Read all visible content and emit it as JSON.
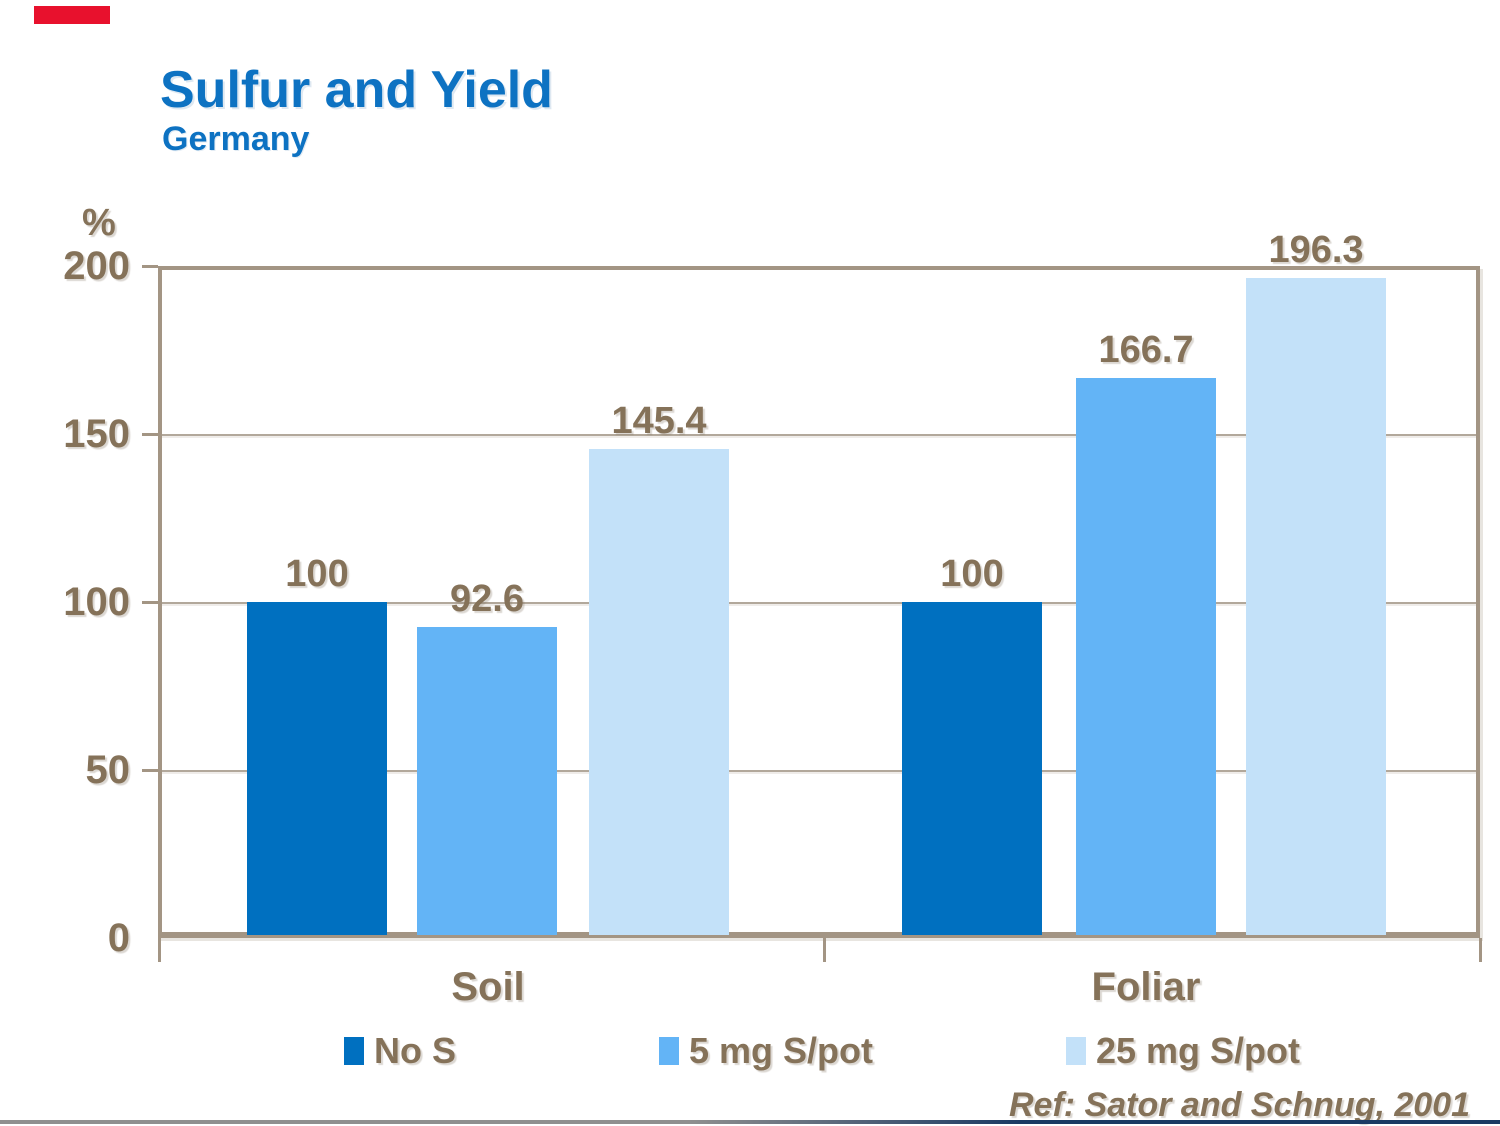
{
  "header": {
    "title": "Sulfur and Yield",
    "subtitle": "Germany"
  },
  "chart_data": {
    "type": "bar",
    "title": "Sulfur and Yield",
    "subtitle": "Germany",
    "unit_label": "%",
    "categories": [
      "Soil",
      "Foliar"
    ],
    "series": [
      {
        "name": "No  S",
        "color": "#0070c0",
        "values": [
          100,
          100
        ],
        "labels": [
          "100",
          "100"
        ]
      },
      {
        "name": "5 mg S/pot",
        "color": "#63b4f6",
        "values": [
          92.6,
          166.7
        ],
        "labels": [
          "92.6",
          "166.7"
        ]
      },
      {
        "name": "25 mg S/pot",
        "color": "#c3e1f9",
        "values": [
          145.4,
          196.3
        ],
        "labels": [
          "145.4",
          "196.3"
        ]
      }
    ],
    "ylim": [
      0,
      200
    ],
    "yticks": [
      0,
      50,
      100,
      150,
      200
    ],
    "ytick_labels": [
      "0",
      "50",
      "100",
      "150",
      "200"
    ],
    "grid": true,
    "legend_position": "bottom"
  },
  "footer": {
    "reference": "Ref: Sator and Schnug, 2001"
  },
  "colors": {
    "title_blue": "#0d72c2",
    "text_brown": "#857259",
    "frame_tan": "#a39584",
    "gridline": "#b2a89b",
    "accent_red": "#e8112d",
    "line_gray": "#8f8f8f",
    "line_navy": "#1b3a63",
    "background": "#ffffff"
  }
}
